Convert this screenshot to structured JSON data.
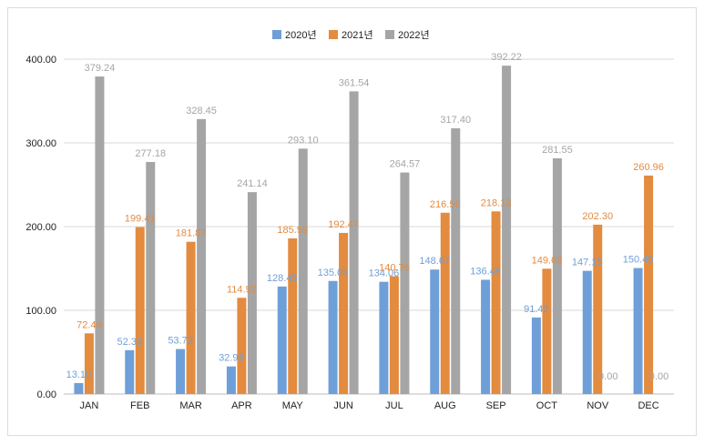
{
  "chart_data": {
    "type": "bar",
    "categories": [
      "JAN",
      "FEB",
      "MAR",
      "APR",
      "MAY",
      "JUN",
      "JUL",
      "AUG",
      "SEP",
      "OCT",
      "NOV",
      "DEC"
    ],
    "series": [
      {
        "name": "2020년",
        "color": "#6f9fd8",
        "values": [
          13.1,
          52.39,
          53.73,
          32.98,
          128.45,
          135.05,
          134.06,
          148.67,
          136.48,
          91.42,
          147.15,
          150.49
        ],
        "labels": [
          "13.10",
          "52.39",
          "53.73",
          "32.98",
          "128.45",
          "135.05",
          "134.06",
          "148.67",
          "136.48",
          "91.42",
          "147.15",
          "150.49"
        ]
      },
      {
        "name": "2021년",
        "color": "#e38b3f",
        "values": [
          72.49,
          199.41,
          181.87,
          114.92,
          185.99,
          192.47,
          140.76,
          216.56,
          218.13,
          149.68,
          202.3,
          260.96
        ],
        "labels": [
          "72.49",
          "199.41",
          "181.87",
          "114.92",
          "185.99",
          "192.47",
          "140.76",
          "216.56",
          "218.13",
          "149.68",
          "202.30",
          "260.96"
        ]
      },
      {
        "name": "2022년",
        "color": "#a5a5a5",
        "values": [
          379.24,
          277.18,
          328.45,
          241.14,
          293.1,
          361.54,
          264.57,
          317.4,
          392.22,
          281.55,
          0.0,
          0.0
        ],
        "labels": [
          "379.24",
          "277.18",
          "328.45",
          "241.14",
          "293.10",
          "361.54",
          "264.57",
          "317.40",
          "392.22",
          "281.55",
          "0.00",
          "0.00"
        ]
      }
    ],
    "yticks": [
      0,
      100,
      200,
      300,
      400
    ],
    "ytick_labels": [
      "0.00",
      "100.00",
      "200.00",
      "300.00",
      "400.00"
    ],
    "ylim": [
      0,
      400
    ],
    "grid": true,
    "legend_position": "top-center"
  }
}
